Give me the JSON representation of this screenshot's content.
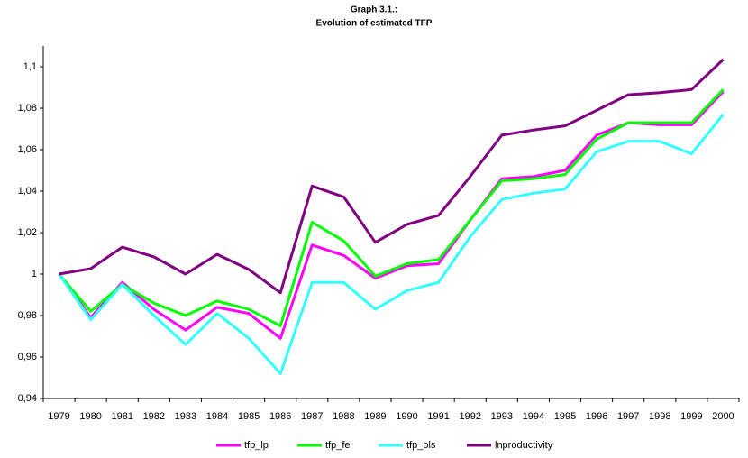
{
  "chart_data": {
    "type": "line",
    "title": "Graph 3.1.:",
    "subtitle": "Evolution of estimated TFP",
    "categories": [
      "1979",
      "1980",
      "1981",
      "1982",
      "1983",
      "1984",
      "1985",
      "1986",
      "1987",
      "1988",
      "1989",
      "1990",
      "1991",
      "1992",
      "1993",
      "1994",
      "1995",
      "1996",
      "1997",
      "1998",
      "1999",
      "2000"
    ],
    "series": [
      {
        "name": "tfp_lp",
        "color": "#ff00ff",
        "values": [
          1.0,
          0.979,
          0.996,
          0.983,
          0.973,
          0.984,
          0.981,
          0.969,
          1.014,
          1.009,
          0.998,
          1.004,
          1.005,
          1.026,
          1.046,
          1.047,
          1.05,
          1.067,
          1.073,
          1.072,
          1.072,
          1.088
        ]
      },
      {
        "name": "tfp_fe",
        "color": "#00ff00",
        "values": [
          1.0,
          0.982,
          0.995,
          0.986,
          0.98,
          0.987,
          0.983,
          0.975,
          1.025,
          1.016,
          0.999,
          1.005,
          1.007,
          1.026,
          1.045,
          1.046,
          1.048,
          1.065,
          1.073,
          1.073,
          1.073,
          1.089
        ]
      },
      {
        "name": "tfp_ols",
        "color": "#33ffff",
        "values": [
          1.0,
          0.978,
          0.995,
          0.98,
          0.966,
          0.981,
          0.969,
          0.952,
          0.996,
          0.996,
          0.983,
          0.992,
          0.996,
          1.018,
          1.036,
          1.039,
          1.041,
          1.059,
          1.064,
          1.064,
          1.058,
          1.077
        ]
      },
      {
        "name": "lnproductivity",
        "color": "#800080",
        "values": [
          1.0,
          1.0026,
          1.013,
          1.0083,
          1.0,
          1.0095,
          1.0022,
          0.991,
          1.0425,
          1.0372,
          1.0153,
          1.0239,
          1.0283,
          1.047,
          1.067,
          1.0695,
          1.0715,
          1.079,
          1.0865,
          1.0875,
          1.089,
          1.1035
        ]
      }
    ],
    "ylim": [
      0.94,
      1.11
    ],
    "yticks": [
      {
        "value": 0.94,
        "label": "0,94"
      },
      {
        "value": 0.96,
        "label": "0,96"
      },
      {
        "value": 0.98,
        "label": "0,98"
      },
      1,
      {
        "value": 1.02,
        "label": "1,02"
      },
      {
        "value": 1.04,
        "label": "1,04"
      },
      {
        "value": 1.06,
        "label": "1,06"
      },
      {
        "value": 1.08,
        "label": "1,08"
      },
      {
        "value": 1.1,
        "label": "1,1"
      }
    ],
    "grid": false,
    "legend": "bottom"
  }
}
